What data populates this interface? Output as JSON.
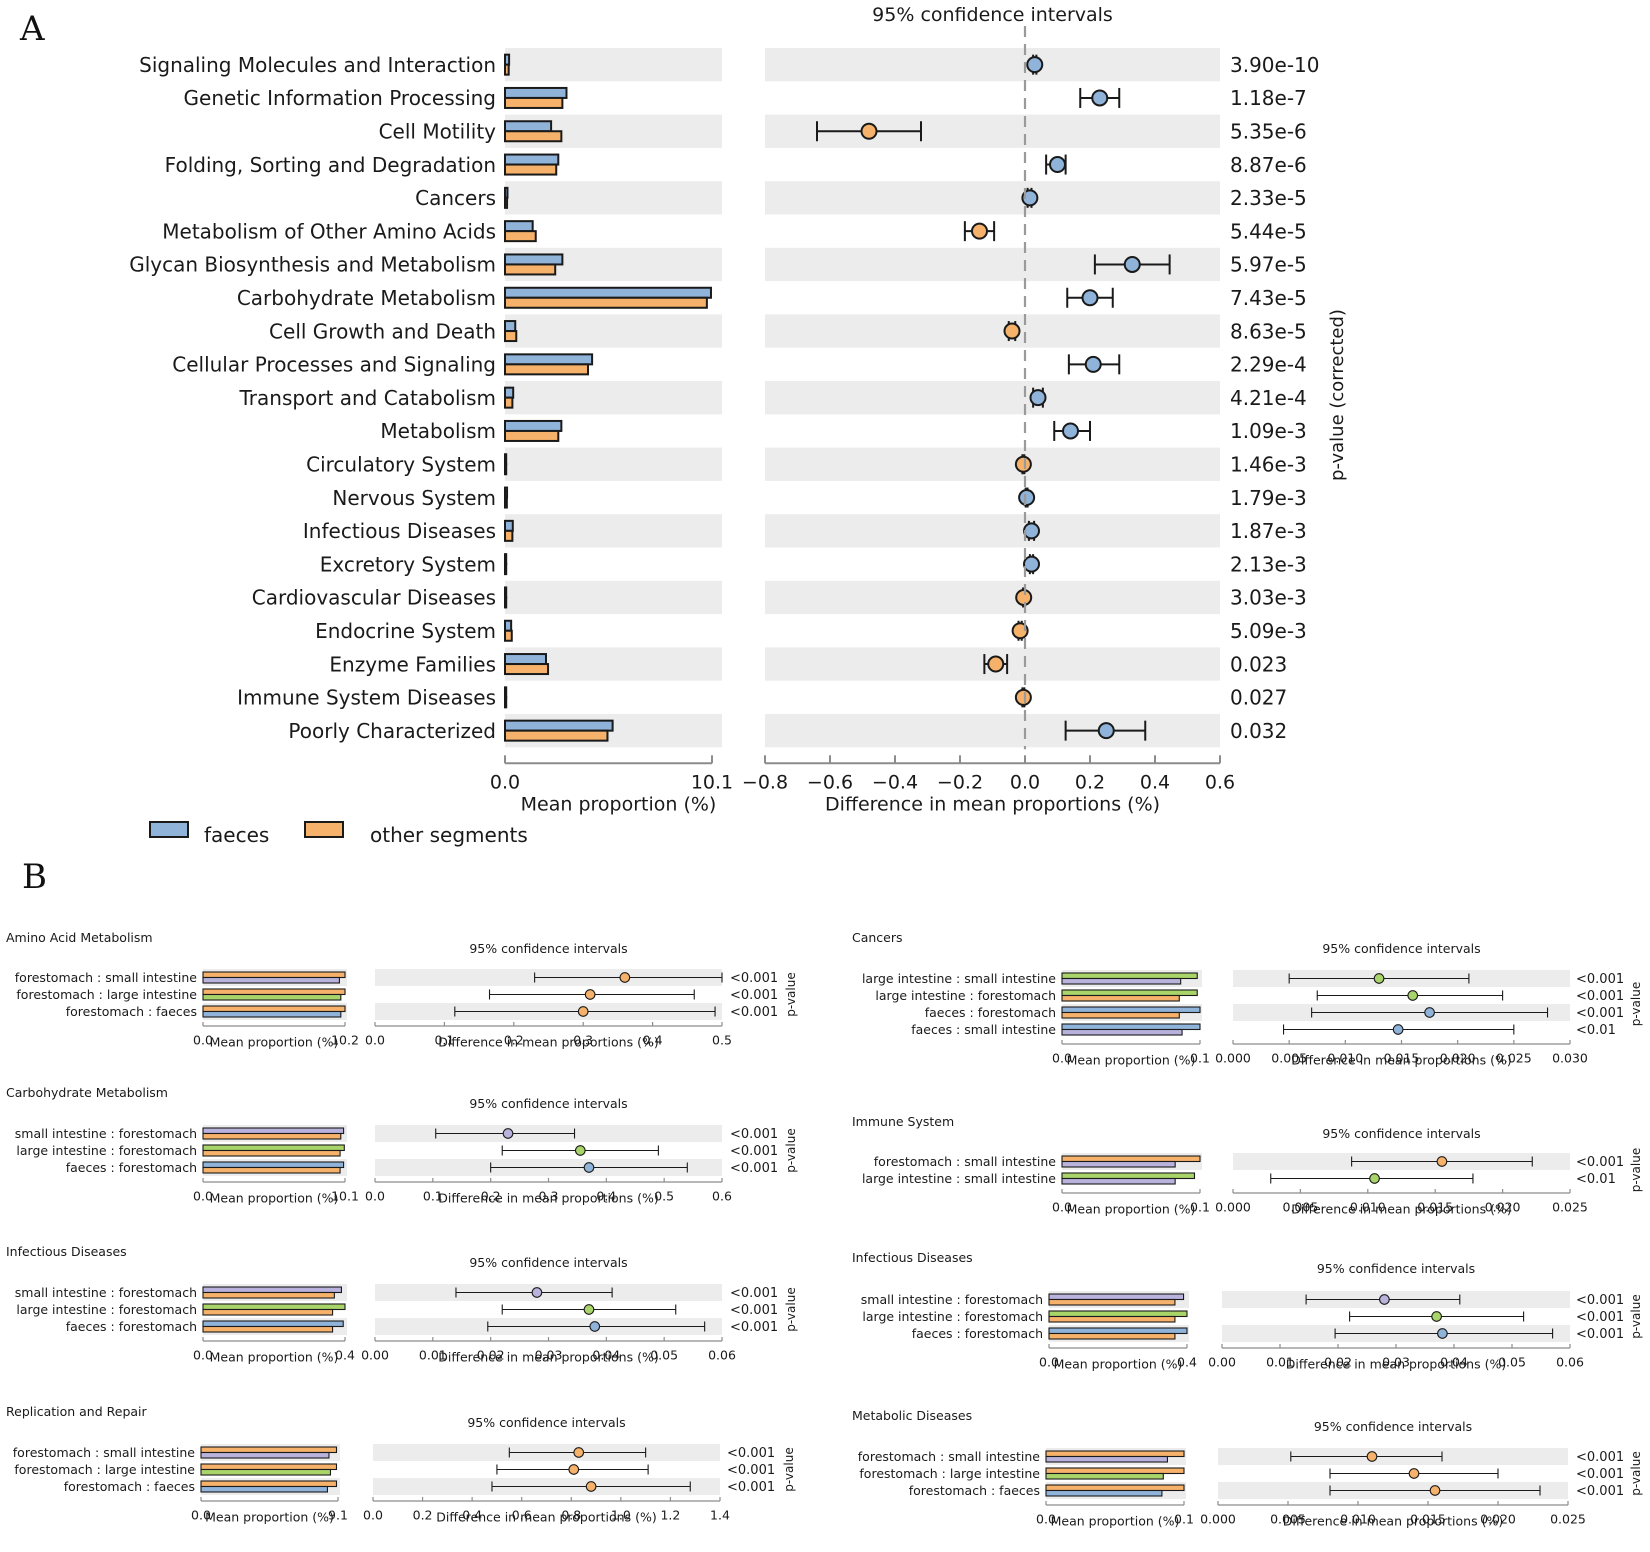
{
  "colors": {
    "faeces": "#8fb3d9",
    "other": "#f6b26b",
    "small_intestine": "#b8b2dd",
    "large_intestine": "#a9d46a",
    "forestomach": "#f6b26b",
    "row_shade": "#ececec",
    "edge": "#1a1a1a",
    "axis": "#8c8c8c",
    "zero_line": "#9a9a9a"
  },
  "panel_a": {
    "letter": "A",
    "ci_title": "95% confidence intervals",
    "bar_xlabel": "Mean proportion (%)",
    "diff_xlabel": "Difference in mean proportions (%)",
    "pvalue_label": "p-value (corrected)",
    "legend": [
      {
        "name": "faeces",
        "color": "faeces"
      },
      {
        "name": "other segments",
        "color": "other"
      }
    ]
  },
  "panel_b_letter": "B",
  "chart_data": [
    {
      "type": "extended_error_bar",
      "panel": "A",
      "title": "95% confidence intervals",
      "xlabel_bar": "Mean proportion (%)",
      "xlabel_diff": "Difference in mean proportions (%)",
      "ylabel_right": "p-value (corrected)",
      "bar_xlim": [
        0,
        10.1
      ],
      "bar_ticks": [
        "0.0",
        "10.1"
      ],
      "diff_xlim": [
        -0.8,
        0.6
      ],
      "diff_ticks": [
        "−0.8",
        "−0.6",
        "−0.4",
        "−0.2",
        "0.0",
        "0.2",
        "0.4",
        "0.6"
      ],
      "series": [
        "faeces",
        "other segments"
      ],
      "rows": [
        {
          "label": "Signaling Molecules and Interaction",
          "m1": 0.2,
          "m2": 0.18,
          "diff": 0.03,
          "lo": 0.025,
          "hi": 0.035,
          "p": "3.90e-10"
        },
        {
          "label": "Genetic Information Processing",
          "m1": 3.0,
          "m2": 2.8,
          "diff": 0.23,
          "lo": 0.17,
          "hi": 0.29,
          "p": "1.18e-7"
        },
        {
          "label": "Cell Motility",
          "m1": 2.25,
          "m2": 2.75,
          "diff": -0.48,
          "lo": -0.64,
          "hi": -0.32,
          "p": "5.35e-6"
        },
        {
          "label": "Folding, Sorting and Degradation",
          "m1": 2.6,
          "m2": 2.5,
          "diff": 0.1,
          "lo": 0.065,
          "hi": 0.125,
          "p": "8.87e-6"
        },
        {
          "label": "Cancers",
          "m1": 0.12,
          "m2": 0.1,
          "diff": 0.015,
          "lo": 0.008,
          "hi": 0.02,
          "p": "2.33e-5"
        },
        {
          "label": "Metabolism of Other Amino Acids",
          "m1": 1.35,
          "m2": 1.5,
          "diff": -0.14,
          "lo": -0.185,
          "hi": -0.095,
          "p": "5.44e-5"
        },
        {
          "label": "Glycan Biosynthesis and Metabolism",
          "m1": 2.8,
          "m2": 2.45,
          "diff": 0.33,
          "lo": 0.215,
          "hi": 0.445,
          "p": "5.97e-5"
        },
        {
          "label": "Carbohydrate Metabolism",
          "m1": 10.05,
          "m2": 9.85,
          "diff": 0.2,
          "lo": 0.13,
          "hi": 0.27,
          "p": "7.43e-5"
        },
        {
          "label": "Cell Growth and Death",
          "m1": 0.5,
          "m2": 0.55,
          "diff": -0.04,
          "lo": -0.05,
          "hi": -0.03,
          "p": "8.63e-5"
        },
        {
          "label": "Cellular Processes and Signaling",
          "m1": 4.25,
          "m2": 4.05,
          "diff": 0.21,
          "lo": 0.135,
          "hi": 0.29,
          "p": "2.29e-4"
        },
        {
          "label": "Transport and Catabolism",
          "m1": 0.4,
          "m2": 0.36,
          "diff": 0.04,
          "lo": 0.025,
          "hi": 0.055,
          "p": "4.21e-4"
        },
        {
          "label": "Metabolism",
          "m1": 2.75,
          "m2": 2.6,
          "diff": 0.14,
          "lo": 0.09,
          "hi": 0.2,
          "p": "1.09e-3"
        },
        {
          "label": "Circulatory System",
          "m1": 0.02,
          "m2": 0.025,
          "diff": -0.005,
          "lo": -0.008,
          "hi": -0.002,
          "p": "1.46e-3"
        },
        {
          "label": "Nervous System",
          "m1": 0.1,
          "m2": 0.09,
          "diff": 0.005,
          "lo": 0.002,
          "hi": 0.008,
          "p": "1.79e-3"
        },
        {
          "label": "Infectious Diseases",
          "m1": 0.38,
          "m2": 0.36,
          "diff": 0.02,
          "lo": 0.012,
          "hi": 0.028,
          "p": "1.87e-3"
        },
        {
          "label": "Excretory System",
          "m1": 0.04,
          "m2": 0.03,
          "diff": 0.02,
          "lo": 0.015,
          "hi": 0.025,
          "p": "2.13e-3"
        },
        {
          "label": "Cardiovascular Diseases",
          "m1": 0.02,
          "m2": 0.02,
          "diff": -0.004,
          "lo": -0.006,
          "hi": -0.002,
          "p": "3.03e-3"
        },
        {
          "label": "Endocrine System",
          "m1": 0.3,
          "m2": 0.33,
          "diff": -0.015,
          "lo": -0.02,
          "hi": -0.01,
          "p": "5.09e-3"
        },
        {
          "label": "Enzyme Families",
          "m1": 2.0,
          "m2": 2.1,
          "diff": -0.09,
          "lo": -0.125,
          "hi": -0.055,
          "p": "0.023"
        },
        {
          "label": "Immune System Diseases",
          "m1": 0.03,
          "m2": 0.035,
          "diff": -0.005,
          "lo": -0.008,
          "hi": -0.002,
          "p": "0.027"
        },
        {
          "label": "Poorly Characterized",
          "m1": 5.25,
          "m2": 5.0,
          "diff": 0.25,
          "lo": 0.125,
          "hi": 0.37,
          "p": "0.032"
        }
      ]
    },
    {
      "type": "extended_error_bar",
      "panel": "B1",
      "title": "Amino Acid Metabolism",
      "ci_title": "95% confidence intervals",
      "xlabel_bar": "Mean proportion (%)",
      "xlabel_diff": "Difference in mean proportions (%)",
      "ylabel_right": "p-value",
      "bar_xlim": [
        0,
        10.2
      ],
      "bar_ticks": [
        "0.0",
        "10.2"
      ],
      "diff_xlim": [
        0,
        0.5
      ],
      "diff_ticks": [
        "0.0",
        "0.1",
        "0.2",
        "0.3",
        "0.4",
        "0.5"
      ],
      "rows": [
        {
          "label": "forestomach : small intestine",
          "c1": "forestomach",
          "c2": "small_intestine",
          "m1": 10.2,
          "m2": 9.8,
          "diff": 0.36,
          "lo": 0.23,
          "hi": 0.5,
          "p": "<0.001"
        },
        {
          "label": "forestomach : large intestine",
          "c1": "forestomach",
          "c2": "large_intestine",
          "m1": 10.2,
          "m2": 9.9,
          "diff": 0.31,
          "lo": 0.165,
          "hi": 0.46,
          "p": "<0.001"
        },
        {
          "label": "forestomach : faeces",
          "c1": "forestomach",
          "c2": "faeces",
          "m1": 10.2,
          "m2": 9.9,
          "diff": 0.3,
          "lo": 0.115,
          "hi": 0.49,
          "p": "<0.001"
        }
      ]
    },
    {
      "type": "extended_error_bar",
      "panel": "B2",
      "title": "Carbohydrate Metabolism",
      "ci_title": "95% confidence intervals",
      "xlabel_bar": "Mean proportion (%)",
      "xlabel_diff": "Difference in mean proportions (%)",
      "ylabel_right": "p-value",
      "bar_xlim": [
        0,
        10.1
      ],
      "bar_ticks": [
        "0.0",
        "10.1"
      ],
      "diff_xlim": [
        0,
        0.6
      ],
      "diff_ticks": [
        "0.0",
        "0.1",
        "0.2",
        "0.3",
        "0.4",
        "0.5",
        "0.6"
      ],
      "rows": [
        {
          "label": "small intestine : forestomach",
          "c1": "small_intestine",
          "c2": "forestomach",
          "m1": 10.0,
          "m2": 9.8,
          "diff": 0.23,
          "lo": 0.105,
          "hi": 0.345,
          "p": "<0.001"
        },
        {
          "label": "large intestine : forestomach",
          "c1": "large_intestine",
          "c2": "forestomach",
          "m1": 10.05,
          "m2": 9.75,
          "diff": 0.355,
          "lo": 0.22,
          "hi": 0.49,
          "p": "<0.001"
        },
        {
          "label": "faeces : forestomach",
          "c1": "faeces",
          "c2": "forestomach",
          "m1": 10.0,
          "m2": 9.75,
          "diff": 0.37,
          "lo": 0.2,
          "hi": 0.54,
          "p": "<0.001"
        }
      ]
    },
    {
      "type": "extended_error_bar",
      "panel": "B3",
      "title": "Infectious Diseases",
      "ci_title": "95% confidence intervals",
      "xlabel_bar": "Mean proportion (%)",
      "xlabel_diff": "Difference in mean proportions (%)",
      "ylabel_right": "p-value",
      "bar_xlim": [
        0,
        0.4
      ],
      "bar_ticks": [
        "0.0",
        "0.4"
      ],
      "diff_xlim": [
        0,
        0.06
      ],
      "diff_ticks": [
        "0.00",
        "0.01",
        "0.02",
        "0.03",
        "0.04",
        "0.05",
        "0.06"
      ],
      "rows": [
        {
          "label": "small intestine : forestomach",
          "c1": "small_intestine",
          "c2": "forestomach",
          "m1": 0.39,
          "m2": 0.37,
          "diff": 0.028,
          "lo": 0.014,
          "hi": 0.041,
          "p": "<0.001"
        },
        {
          "label": "large intestine : forestomach",
          "c1": "large_intestine",
          "c2": "forestomach",
          "m1": 0.4,
          "m2": 0.365,
          "diff": 0.037,
          "lo": 0.022,
          "hi": 0.052,
          "p": "<0.001"
        },
        {
          "label": "faeces : forestomach",
          "c1": "faeces",
          "c2": "forestomach",
          "m1": 0.395,
          "m2": 0.365,
          "diff": 0.038,
          "lo": 0.0195,
          "hi": 0.057,
          "p": "<0.001"
        }
      ]
    },
    {
      "type": "extended_error_bar",
      "panel": "B4",
      "title": "Replication and Repair",
      "ci_title": "95% confidence intervals",
      "xlabel_bar": "Mean proportion (%)",
      "xlabel_diff": "Difference in mean proportions (%)",
      "ylabel_right": "p-value",
      "bar_xlim": [
        0,
        9.1
      ],
      "bar_ticks": [
        "0.0",
        "9.1"
      ],
      "diff_xlim": [
        0,
        1.4
      ],
      "diff_ticks": [
        "0.0",
        "0.2",
        "0.4",
        "0.6",
        "0.8",
        "1.0",
        "1.2",
        "1.4"
      ],
      "rows": [
        {
          "label": "forestomach : small intestine",
          "c1": "forestomach",
          "c2": "small_intestine",
          "m1": 9.0,
          "m2": 8.5,
          "diff": 0.83,
          "lo": 0.55,
          "hi": 1.1,
          "p": "<0.001"
        },
        {
          "label": "forestomach : large intestine",
          "c1": "forestomach",
          "c2": "large_intestine",
          "m1": 9.0,
          "m2": 8.6,
          "diff": 0.81,
          "lo": 0.5,
          "hi": 1.11,
          "p": "<0.001"
        },
        {
          "label": "forestomach : faeces",
          "c1": "forestomach",
          "c2": "faeces",
          "m1": 9.0,
          "m2": 8.4,
          "diff": 0.88,
          "lo": 0.48,
          "hi": 1.28,
          "p": "<0.001"
        }
      ]
    },
    {
      "type": "extended_error_bar",
      "panel": "B5",
      "title": "Cancers",
      "ci_title": "95% confidence intervals",
      "xlabel_bar": "Mean proportion (%)",
      "xlabel_diff": "Difference in mean proportions (%)",
      "ylabel_right": "p-value",
      "bar_xlim": [
        0,
        0.1
      ],
      "bar_ticks": [
        "0.0",
        "0.1"
      ],
      "diff_xlim": [
        0,
        0.03
      ],
      "diff_ticks": [
        "0.000",
        "0.005",
        "0.010",
        "0.015",
        "0.020",
        "0.025",
        "0.030"
      ],
      "rows": [
        {
          "label": "large intestine : small intestine",
          "c1": "large_intestine",
          "c2": "small_intestine",
          "m1": 0.098,
          "m2": 0.086,
          "diff": 0.013,
          "lo": 0.005,
          "hi": 0.021,
          "p": "<0.001"
        },
        {
          "label": "large intestine : forestomach",
          "c1": "large_intestine",
          "c2": "forestomach",
          "m1": 0.098,
          "m2": 0.085,
          "diff": 0.016,
          "lo": 0.0075,
          "hi": 0.024,
          "p": "<0.001"
        },
        {
          "label": "faeces : forestomach",
          "c1": "faeces",
          "c2": "forestomach",
          "m1": 0.1,
          "m2": 0.085,
          "diff": 0.0175,
          "lo": 0.007,
          "hi": 0.028,
          "p": "<0.001"
        },
        {
          "label": "faeces : small intestine",
          "c1": "faeces",
          "c2": "small_intestine",
          "m1": 0.1,
          "m2": 0.087,
          "diff": 0.0147,
          "lo": 0.0045,
          "hi": 0.025,
          "p": "<0.01"
        }
      ]
    },
    {
      "type": "extended_error_bar",
      "panel": "B6",
      "title": "Immune System",
      "ci_title": "95% confidence intervals",
      "xlabel_bar": "Mean proportion (%)",
      "xlabel_diff": "Difference in mean proportions (%)",
      "ylabel_right": "p-value",
      "bar_xlim": [
        0,
        0.1
      ],
      "bar_ticks": [
        "0.0",
        "0.1"
      ],
      "diff_xlim": [
        0,
        0.025
      ],
      "diff_ticks": [
        "0.000",
        "0.005",
        "0.010",
        "0.015",
        "0.020",
        "0.025"
      ],
      "rows": [
        {
          "label": "forestomach : small intestine",
          "c1": "forestomach",
          "c2": "small_intestine",
          "m1": 0.1,
          "m2": 0.082,
          "diff": 0.0155,
          "lo": 0.0088,
          "hi": 0.0222,
          "p": "<0.001"
        },
        {
          "label": "large intestine : small intestine",
          "c1": "large_intestine",
          "c2": "small_intestine",
          "m1": 0.096,
          "m2": 0.082,
          "diff": 0.0105,
          "lo": 0.0028,
          "hi": 0.0178,
          "p": "<0.01"
        }
      ]
    },
    {
      "type": "extended_error_bar",
      "panel": "B7",
      "title": "Infectious Diseases",
      "ci_title": "95% confidence intervals",
      "xlabel_bar": "Mean proportion (%)",
      "xlabel_diff": "Difference in mean proportions (%)",
      "ylabel_right": "p-value",
      "bar_xlim": [
        0,
        0.4
      ],
      "bar_ticks": [
        "0.0",
        "0.4"
      ],
      "diff_xlim": [
        0,
        0.06
      ],
      "diff_ticks": [
        "0.00",
        "0.01",
        "0.02",
        "0.03",
        "0.04",
        "0.05",
        "0.06"
      ],
      "rows": [
        {
          "label": "small intestine : forestomach",
          "c1": "small_intestine",
          "c2": "forestomach",
          "m1": 0.39,
          "m2": 0.365,
          "diff": 0.028,
          "lo": 0.0145,
          "hi": 0.041,
          "p": "<0.001"
        },
        {
          "label": "large intestine : forestomach",
          "c1": "large_intestine",
          "c2": "forestomach",
          "m1": 0.4,
          "m2": 0.365,
          "diff": 0.037,
          "lo": 0.022,
          "hi": 0.052,
          "p": "<0.001"
        },
        {
          "label": "faeces : forestomach",
          "c1": "faeces",
          "c2": "forestomach",
          "m1": 0.4,
          "m2": 0.365,
          "diff": 0.038,
          "lo": 0.0195,
          "hi": 0.057,
          "p": "<0.001"
        }
      ]
    },
    {
      "type": "extended_error_bar",
      "panel": "B8",
      "title": "Metabolic Diseases",
      "ci_title": "95% confidence intervals",
      "xlabel_bar": "Mean proportion (%)",
      "xlabel_diff": "Difference in mean proportions (%)",
      "ylabel_right": "p-value",
      "bar_xlim": [
        0,
        0.1
      ],
      "bar_ticks": [
        "0.0",
        "0.1"
      ],
      "diff_xlim": [
        0,
        0.025
      ],
      "diff_ticks": [
        "0.000",
        "0.005",
        "0.010",
        "0.015",
        "0.020",
        "0.025"
      ],
      "rows": [
        {
          "label": "forestomach : small intestine",
          "c1": "forestomach",
          "c2": "small_intestine",
          "m1": 0.1,
          "m2": 0.088,
          "diff": 0.011,
          "lo": 0.0052,
          "hi": 0.016,
          "p": "<0.001"
        },
        {
          "label": "forestomach : large intestine",
          "c1": "forestomach",
          "c2": "large_intestine",
          "m1": 0.1,
          "m2": 0.085,
          "diff": 0.014,
          "lo": 0.008,
          "hi": 0.02,
          "p": "<0.001"
        },
        {
          "label": "forestomach : faeces",
          "c1": "forestomach",
          "c2": "faeces",
          "m1": 0.1,
          "m2": 0.084,
          "diff": 0.0155,
          "lo": 0.008,
          "hi": 0.023,
          "p": "<0.001"
        }
      ]
    }
  ]
}
